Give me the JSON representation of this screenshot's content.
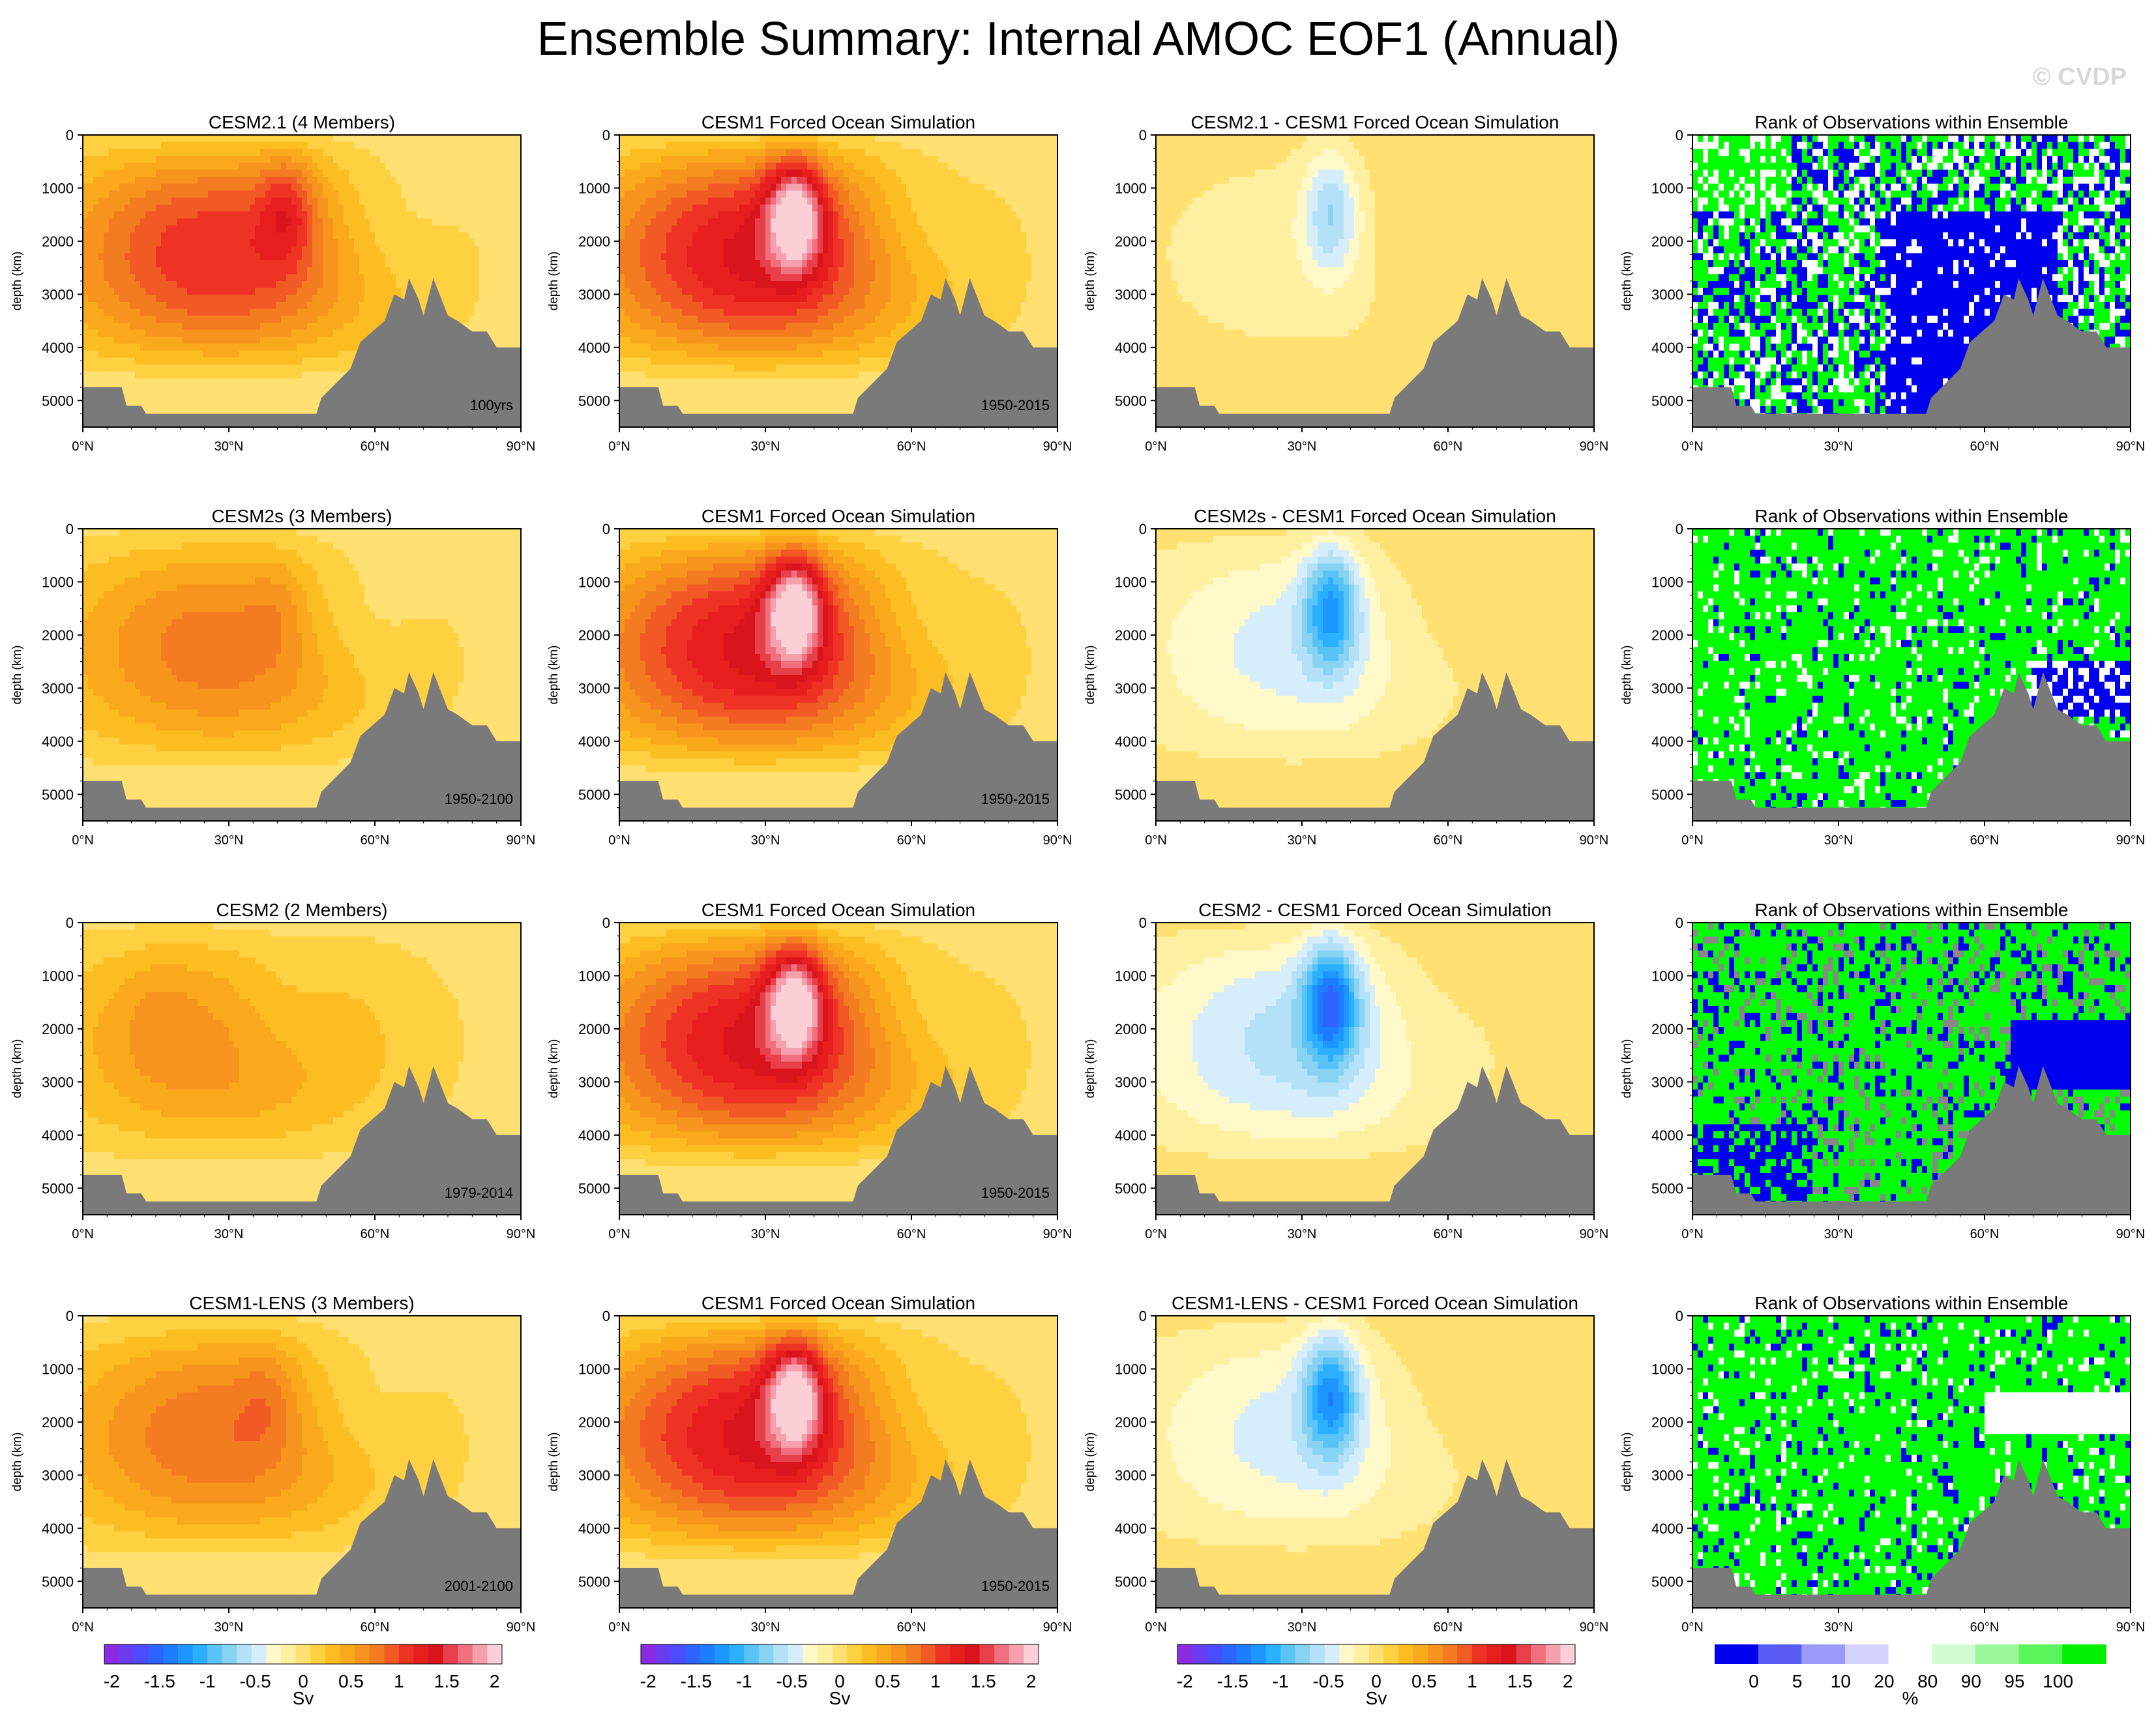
{
  "title": "Ensemble Summary: Internal AMOC EOF1 (Annual)",
  "watermark": "© CVDP",
  "axis": {
    "ylabel": "depth (km)",
    "yticks": [
      0,
      1000,
      2000,
      3000,
      4000,
      5000
    ],
    "ylim": [
      0,
      5500
    ],
    "xticks": [
      "0°N",
      "30°N",
      "60°N",
      "90°N"
    ],
    "xlim": [
      0,
      90
    ]
  },
  "colors": {
    "bathymetry": "#7a7a7a",
    "contour": "#555555",
    "rank_green": "#00ff00",
    "rank_blue": "#0000ee"
  },
  "rows": [
    {
      "panels": [
        {
          "type": "model",
          "title": "CESM2.1 (4 Members)",
          "period": "100yrs",
          "amp": 1.1,
          "core_lat": 42,
          "core_depth": 1400,
          "core_amp": 0.5,
          "neg_lat": 60
        },
        {
          "type": "obs",
          "title": "CESM1 Forced Ocean Simulation",
          "period": "1950-2015",
          "amp": 1.3,
          "core_lat": 36,
          "core_depth": 1500,
          "core_amp": 1.3,
          "neg_lat": 60
        },
        {
          "type": "diff",
          "title": "CESM2.1 - CESM1 Forced Ocean Simulation",
          "amp": -0.15,
          "core_amp": -0.6
        },
        {
          "type": "rank",
          "title": "Rank of Observations within Ensemble",
          "pattern": 0
        }
      ]
    },
    {
      "panels": [
        {
          "type": "model",
          "title": "CESM2s (3 Members)",
          "period": "1950-2100",
          "amp": 0.75,
          "core_lat": 40,
          "core_depth": 1500,
          "core_amp": 0.15,
          "neg_lat": 55
        },
        {
          "type": "obs",
          "title": "CESM1 Forced Ocean Simulation",
          "period": "1950-2015",
          "amp": 1.3,
          "core_lat": 36,
          "core_depth": 1500,
          "core_amp": 1.3,
          "neg_lat": 60
        },
        {
          "type": "diff",
          "title": "CESM2s - CESM1 Forced Ocean Simulation",
          "amp": -0.45,
          "core_amp": -0.9
        },
        {
          "type": "rank",
          "title": "Rank of Observations within Ensemble",
          "pattern": 1
        }
      ]
    },
    {
      "panels": [
        {
          "type": "model",
          "title": "CESM2 (2 Members)",
          "period": "1979-2014",
          "amp": 0.65,
          "core_lat": 15,
          "core_depth": 1800,
          "core_amp": 0.1,
          "neg_lat": 40
        },
        {
          "type": "obs",
          "title": "CESM1 Forced Ocean Simulation",
          "period": "1950-2015",
          "amp": 1.3,
          "core_lat": 36,
          "core_depth": 1500,
          "core_amp": 1.3,
          "neg_lat": 60
        },
        {
          "type": "diff",
          "title": "CESM2 - CESM1 Forced Ocean Simulation",
          "amp": -0.6,
          "core_amp": -1.1
        },
        {
          "type": "rank",
          "title": "Rank of Observations within Ensemble",
          "pattern": 2
        }
      ]
    },
    {
      "panels": [
        {
          "type": "model",
          "title": "CESM1-LENS (3 Members)",
          "period": "2001-2100",
          "amp": 0.8,
          "core_lat": 38,
          "core_depth": 1500,
          "core_amp": 0.2,
          "neg_lat": 55
        },
        {
          "type": "obs",
          "title": "CESM1 Forced Ocean Simulation",
          "period": "1950-2015",
          "amp": 1.3,
          "core_lat": 36,
          "core_depth": 1500,
          "core_amp": 1.3,
          "neg_lat": 60
        },
        {
          "type": "diff",
          "title": "CESM1-LENS - CESM1 Forced Ocean Simulation",
          "amp": -0.45,
          "core_amp": -0.95
        },
        {
          "type": "rank",
          "title": "Rank of Observations within Ensemble",
          "pattern": 3
        }
      ]
    }
  ],
  "sv_colorbar": {
    "label": "Sv",
    "tick_labels": [
      "-2",
      "-1.5",
      "-1",
      "-0.5",
      "0",
      "0.5",
      "1",
      "1.5",
      "2"
    ],
    "colors": [
      "#8a2be2",
      "#6a3cf0",
      "#4b4bff",
      "#2f63ff",
      "#1c7dff",
      "#1e96ff",
      "#2bb0ff",
      "#5ac3f5",
      "#89d3f2",
      "#b4e1f7",
      "#d6eefb",
      "#fff8c8",
      "#ffefa0",
      "#ffe070",
      "#ffd040",
      "#fcbd22",
      "#f9a91b",
      "#f7941d",
      "#f47c20",
      "#f15a24",
      "#ee3224",
      "#e61e1e",
      "#d9141c",
      "#e8404a",
      "#f07080",
      "#f5a0ac",
      "#fbcfd5"
    ]
  },
  "pct_colorbar": {
    "label": "%",
    "tick_labels": [
      "0",
      "5",
      "10",
      "20",
      "80",
      "90",
      "95",
      "100"
    ],
    "colors": [
      "#0000ee",
      "#5a5af5",
      "#9a9af8",
      "#d2d2fb",
      "#ffffff",
      "#d2fbd2",
      "#9af89a",
      "#5af55a",
      "#00ee00"
    ]
  }
}
